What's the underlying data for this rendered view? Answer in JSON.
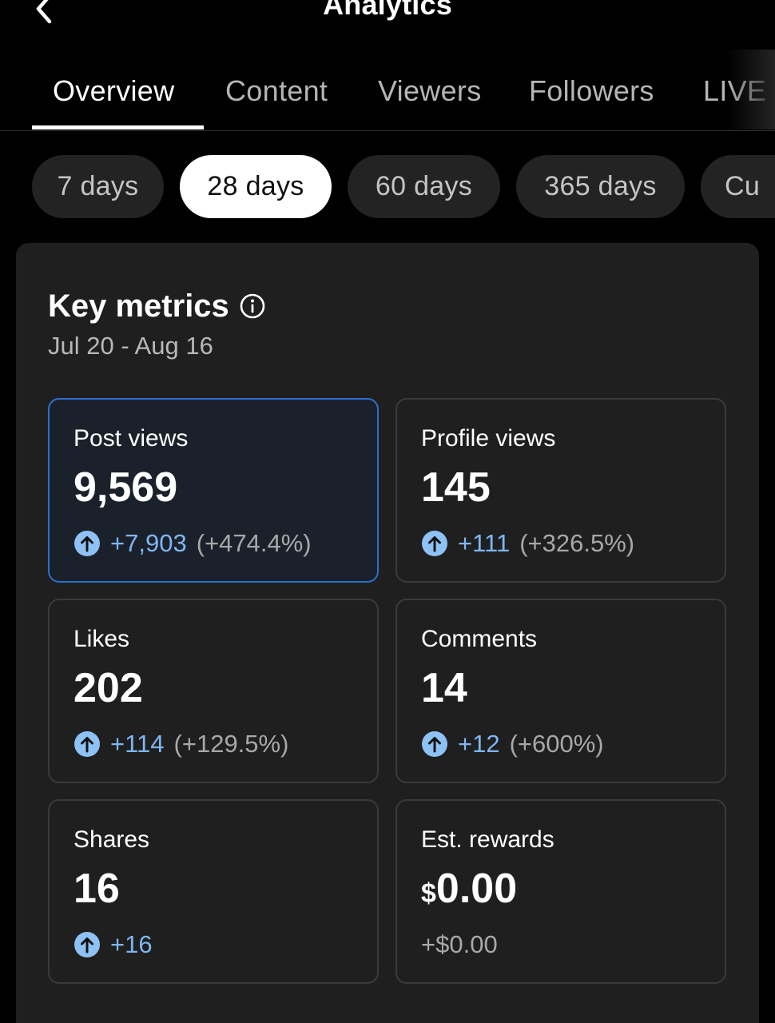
{
  "header": {
    "title": "Analytics",
    "back_icon": "chevron-left-icon"
  },
  "tabs": [
    {
      "label": "Overview",
      "active": true
    },
    {
      "label": "Content",
      "active": false
    },
    {
      "label": "Viewers",
      "active": false
    },
    {
      "label": "Followers",
      "active": false
    },
    {
      "label": "LIVE",
      "active": false
    }
  ],
  "periods": [
    {
      "label": "7 days",
      "active": false
    },
    {
      "label": "28 days",
      "active": true
    },
    {
      "label": "60 days",
      "active": false
    },
    {
      "label": "365 days",
      "active": false
    },
    {
      "label": "Cu",
      "active": false
    }
  ],
  "key_metrics": {
    "title": "Key metrics",
    "info_icon": "info-icon",
    "date_range": "Jul 20 - Aug 16",
    "cards": [
      {
        "label": "Post views",
        "value": "9,569",
        "delta": "+7,903",
        "pct": "(+474.4%)",
        "selected": true
      },
      {
        "label": "Profile views",
        "value": "145",
        "delta": "+111",
        "pct": "(+326.5%)",
        "selected": false
      },
      {
        "label": "Likes",
        "value": "202",
        "delta": "+114",
        "pct": "(+129.5%)",
        "selected": false
      },
      {
        "label": "Comments",
        "value": "14",
        "delta": "+12",
        "pct": "(+600%)",
        "selected": false
      },
      {
        "label": "Shares",
        "value": "16",
        "delta": "+16",
        "pct": "",
        "selected": false
      },
      {
        "label": "Est. rewards",
        "currency": "$",
        "value": "0.00",
        "delta": "+$0.00",
        "pct": "",
        "selected": false
      }
    ]
  },
  "colors": {
    "background": "#000000",
    "panel": "#1f1f1f",
    "accent_blue": "#7fb6f2",
    "selected_border": "#2c6fcf"
  }
}
